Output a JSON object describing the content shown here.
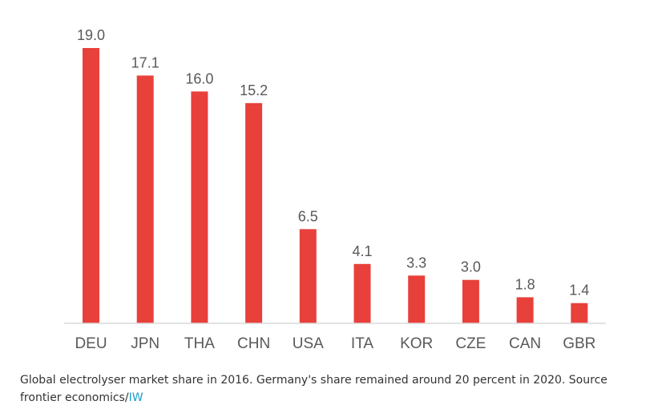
{
  "chart_data": {
    "type": "bar",
    "title": "",
    "xlabel": "",
    "ylabel": "",
    "categories": [
      "DEU",
      "JPN",
      "THA",
      "CHN",
      "USA",
      "ITA",
      "KOR",
      "CZE",
      "CAN",
      "GBR"
    ],
    "values": [
      19.0,
      17.1,
      16.0,
      15.2,
      6.5,
      4.1,
      3.3,
      3.0,
      1.8,
      1.4
    ],
    "value_labels": [
      "19.0",
      "17.1",
      "16.0",
      "15.2",
      "6.5",
      "4.1",
      "3.3",
      "3.0",
      "1.8",
      "1.4"
    ],
    "ylim": [
      0,
      19
    ],
    "grid": false,
    "legend": "none",
    "bar_color": "#e8403a",
    "axis_color": "#d9d9d9",
    "label_color": "#595959"
  },
  "caption": {
    "text": "Global electrolyser market share in 2016. Germany's share remained around 20 percent in 2020. Source frontier economics/",
    "link_text": "IW",
    "link_color": "#1a9ec9"
  }
}
